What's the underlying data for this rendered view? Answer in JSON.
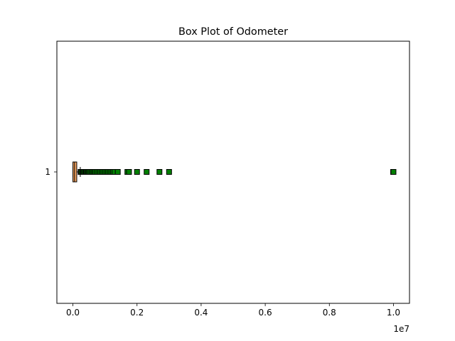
{
  "chart_data": {
    "type": "boxplot",
    "orientation": "horizontal",
    "title": "Box Plot of Odometer",
    "xlabel": "",
    "ylabel": "",
    "x_scale_label": "1e7",
    "xlim": [
      -500000,
      10500000
    ],
    "x_ticks": [
      0,
      2000000,
      4000000,
      6000000,
      8000000,
      10000000
    ],
    "x_tick_labels": [
      "0.0",
      "0.2",
      "0.4",
      "0.6",
      "0.8",
      "1.0"
    ],
    "y_tick_labels": [
      "1"
    ],
    "grid": false,
    "series": [
      {
        "category": "1",
        "whisker_low": 0,
        "q1": 0,
        "median": 50000,
        "q3": 120000,
        "whisker_high": 230000,
        "outliers": [
          240000,
          260000,
          290000,
          320000,
          350000,
          380000,
          410000,
          440000,
          470000,
          500000,
          540000,
          580000,
          620000,
          660000,
          700000,
          750000,
          800000,
          850000,
          900000,
          950000,
          1000000,
          1050000,
          1100000,
          1150000,
          1200000,
          1250000,
          1300000,
          1400000,
          1700000,
          1750000,
          2000000,
          2300000,
          2700000,
          3000000,
          9990000,
          10000000
        ]
      }
    ],
    "colors": {
      "box_fill": "#f4a460",
      "box_edge": "#000000",
      "median": "#000000",
      "whisker": "#000000",
      "outlier_fill": "#008000",
      "outlier_edge": "#000000"
    }
  }
}
